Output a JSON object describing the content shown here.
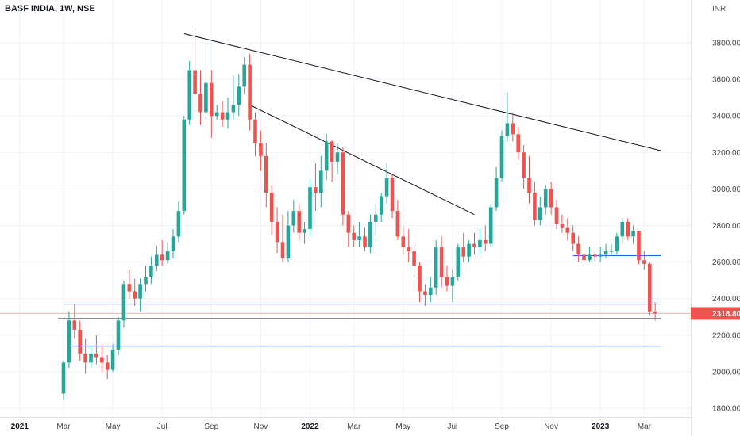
{
  "header": {
    "title": "BASF INDIA, 1W, NSE",
    "currency": "INR"
  },
  "colors": {
    "up": "#26a69a",
    "down": "#ef5350",
    "support": "#2962ff",
    "trend": "#131722",
    "last": "#ef5350",
    "grid": "#f0f3fa"
  },
  "chart_data": {
    "type": "candlestick",
    "title": "BASF INDIA, 1W, NSE",
    "ylabel": "INR",
    "ylim": [
      1760,
      3940
    ],
    "yticks": [
      1800,
      2000,
      2200,
      2400,
      2600,
      2800,
      3000,
      3200,
      3400,
      3600,
      3800
    ],
    "ytick_labels": [
      "1800.00",
      "2000.00",
      "2200.00",
      "2400.00",
      "2600.00",
      "2800.00",
      "3000.00",
      "3200.00",
      "3400.00",
      "3600.00",
      "3800.00"
    ],
    "xticks": [
      {
        "label": "2021",
        "week": -8,
        "bold": true
      },
      {
        "label": "Mar",
        "week": 0,
        "bold": false
      },
      {
        "label": "May",
        "week": 9,
        "bold": false
      },
      {
        "label": "Jul",
        "week": 18,
        "bold": false
      },
      {
        "label": "Sep",
        "week": 27,
        "bold": false
      },
      {
        "label": "Nov",
        "week": 36,
        "bold": false
      },
      {
        "label": "2022",
        "week": 45,
        "bold": true
      },
      {
        "label": "Mar",
        "week": 53,
        "bold": false
      },
      {
        "label": "May",
        "week": 62,
        "bold": false
      },
      {
        "label": "Jul",
        "week": 71,
        "bold": false
      },
      {
        "label": "Sep",
        "week": 80,
        "bold": false
      },
      {
        "label": "Nov",
        "week": 89,
        "bold": false
      },
      {
        "label": "2023",
        "week": 98,
        "bold": true
      },
      {
        "label": "Mar",
        "week": 106,
        "bold": false
      }
    ],
    "candles": [
      [
        1880,
        2050,
        1850,
        2060
      ],
      [
        2050,
        2280,
        2020,
        2330
      ],
      [
        2280,
        2230,
        2180,
        2370
      ],
      [
        2230,
        2100,
        2060,
        2280
      ],
      [
        2100,
        2050,
        1990,
        2180
      ],
      [
        2050,
        2100,
        2020,
        2140
      ],
      [
        2100,
        2080,
        2040,
        2200
      ],
      [
        2080,
        2050,
        2000,
        2150
      ],
      [
        2050,
        2010,
        1960,
        2090
      ],
      [
        2010,
        2120,
        2000,
        2150
      ],
      [
        2120,
        2280,
        2090,
        2300
      ],
      [
        2280,
        2480,
        2240,
        2500
      ],
      [
        2480,
        2440,
        2400,
        2560
      ],
      [
        2440,
        2400,
        2360,
        2510
      ],
      [
        2400,
        2480,
        2330,
        2510
      ],
      [
        2480,
        2520,
        2440,
        2580
      ],
      [
        2520,
        2580,
        2480,
        2630
      ],
      [
        2580,
        2640,
        2550,
        2690
      ],
      [
        2640,
        2610,
        2580,
        2720
      ],
      [
        2610,
        2660,
        2590,
        2710
      ],
      [
        2660,
        2740,
        2620,
        2780
      ],
      [
        2740,
        2880,
        2710,
        2930
      ],
      [
        2880,
        3380,
        2860,
        3400
      ],
      [
        3380,
        3650,
        3350,
        3700
      ],
      [
        3650,
        3520,
        3420,
        3880
      ],
      [
        3520,
        3420,
        3350,
        3650
      ],
      [
        3420,
        3580,
        3380,
        3800
      ],
      [
        3580,
        3400,
        3280,
        3650
      ],
      [
        3400,
        3420,
        3380,
        3460
      ],
      [
        3420,
        3380,
        3340,
        3480
      ],
      [
        3380,
        3420,
        3330,
        3500
      ],
      [
        3420,
        3460,
        3380,
        3620
      ],
      [
        3460,
        3560,
        3400,
        3630
      ],
      [
        3560,
        3680,
        3520,
        3720
      ],
      [
        3680,
        3380,
        3320,
        3740
      ],
      [
        3380,
        3250,
        3180,
        3420
      ],
      [
        3250,
        3180,
        3100,
        3320
      ],
      [
        3180,
        2980,
        2900,
        3250
      ],
      [
        2980,
        2820,
        2750,
        3020
      ],
      [
        2820,
        2710,
        2650,
        2900
      ],
      [
        2710,
        2620,
        2600,
        2860
      ],
      [
        2620,
        2800,
        2600,
        2880
      ],
      [
        2800,
        2880,
        2760,
        2940
      ],
      [
        2880,
        2760,
        2720,
        2920
      ],
      [
        2760,
        2780,
        2700,
        2820
      ],
      [
        2780,
        3010,
        2740,
        3050
      ],
      [
        3010,
        2980,
        2880,
        3140
      ],
      [
        2980,
        3100,
        2900,
        3180
      ],
      [
        3100,
        3260,
        3050,
        3300
      ],
      [
        3260,
        3150,
        3040,
        3270
      ],
      [
        3150,
        3200,
        3080,
        3250
      ],
      [
        3200,
        2860,
        2800,
        3230
      ],
      [
        2860,
        2760,
        2680,
        2880
      ],
      [
        2760,
        2720,
        2680,
        2800
      ],
      [
        2720,
        2740,
        2680,
        2820
      ],
      [
        2740,
        2680,
        2660,
        2790
      ],
      [
        2680,
        2820,
        2650,
        2860
      ],
      [
        2820,
        2860,
        2740,
        2920
      ],
      [
        2860,
        2960,
        2820,
        2980
      ],
      [
        2960,
        3060,
        2920,
        3140
      ],
      [
        3060,
        2880,
        2840,
        3080
      ],
      [
        2880,
        2740,
        2720,
        2940
      ],
      [
        2740,
        2680,
        2640,
        2800
      ],
      [
        2680,
        2660,
        2600,
        2780
      ],
      [
        2660,
        2580,
        2520,
        2700
      ],
      [
        2580,
        2440,
        2380,
        2600
      ],
      [
        2440,
        2420,
        2360,
        2480
      ],
      [
        2420,
        2460,
        2380,
        2520
      ],
      [
        2460,
        2680,
        2420,
        2720
      ],
      [
        2680,
        2520,
        2460,
        2740
      ],
      [
        2520,
        2470,
        2440,
        2580
      ],
      [
        2470,
        2520,
        2380,
        2560
      ],
      [
        2520,
        2680,
        2500,
        2700
      ],
      [
        2680,
        2630,
        2600,
        2760
      ],
      [
        2630,
        2700,
        2600,
        2720
      ],
      [
        2700,
        2680,
        2640,
        2760
      ],
      [
        2680,
        2720,
        2640,
        2780
      ],
      [
        2720,
        2700,
        2660,
        2800
      ],
      [
        2700,
        2900,
        2680,
        2920
      ],
      [
        2900,
        3060,
        2880,
        3120
      ],
      [
        3060,
        3290,
        3040,
        3320
      ],
      [
        3290,
        3360,
        3260,
        3530
      ],
      [
        3360,
        3300,
        3260,
        3420
      ],
      [
        3300,
        3200,
        3160,
        3340
      ],
      [
        3200,
        3060,
        3000,
        3240
      ],
      [
        3060,
        2980,
        2920,
        3180
      ],
      [
        2980,
        2830,
        2800,
        3040
      ],
      [
        2830,
        2900,
        2800,
        2960
      ],
      [
        2900,
        3000,
        2860,
        3020
      ],
      [
        3000,
        2900,
        2860,
        3040
      ],
      [
        2900,
        2810,
        2780,
        2940
      ],
      [
        2810,
        2790,
        2760,
        2860
      ],
      [
        2790,
        2760,
        2720,
        2840
      ],
      [
        2760,
        2700,
        2660,
        2800
      ],
      [
        2700,
        2640,
        2600,
        2740
      ],
      [
        2640,
        2610,
        2580,
        2700
      ],
      [
        2610,
        2640,
        2600,
        2680
      ],
      [
        2640,
        2630,
        2600,
        2660
      ],
      [
        2630,
        2640,
        2600,
        2680
      ],
      [
        2640,
        2660,
        2620,
        2700
      ],
      [
        2660,
        2660,
        2640,
        2700
      ],
      [
        2660,
        2740,
        2640,
        2760
      ],
      [
        2740,
        2820,
        2700,
        2840
      ],
      [
        2820,
        2740,
        2720,
        2840
      ],
      [
        2740,
        2770,
        2700,
        2800
      ],
      [
        2770,
        2610,
        2590,
        2770
      ],
      [
        2610,
        2590,
        2560,
        2660
      ],
      [
        2590,
        2330,
        2310,
        2600
      ],
      [
        2330,
        2318.8,
        2280,
        2380
      ]
    ],
    "support_lines": [
      {
        "value": 2370,
        "from": 0,
        "to": 109,
        "color": "#2962ff"
      },
      {
        "value": 2290,
        "from": -1,
        "to": 109,
        "color": "#131722"
      },
      {
        "value": 2140,
        "from": 1,
        "to": 109,
        "color": "#2962ff"
      },
      {
        "value": 2635,
        "from": 93,
        "to": 109,
        "color": "#2962ff"
      }
    ],
    "trend_lines": [
      {
        "from": [
          22,
          3850
        ],
        "to": [
          109,
          3210
        ]
      },
      {
        "from": [
          34,
          3460
        ],
        "to": [
          75,
          2860
        ]
      }
    ],
    "last_price": 2318.8,
    "last_price_label": "2318.80"
  }
}
